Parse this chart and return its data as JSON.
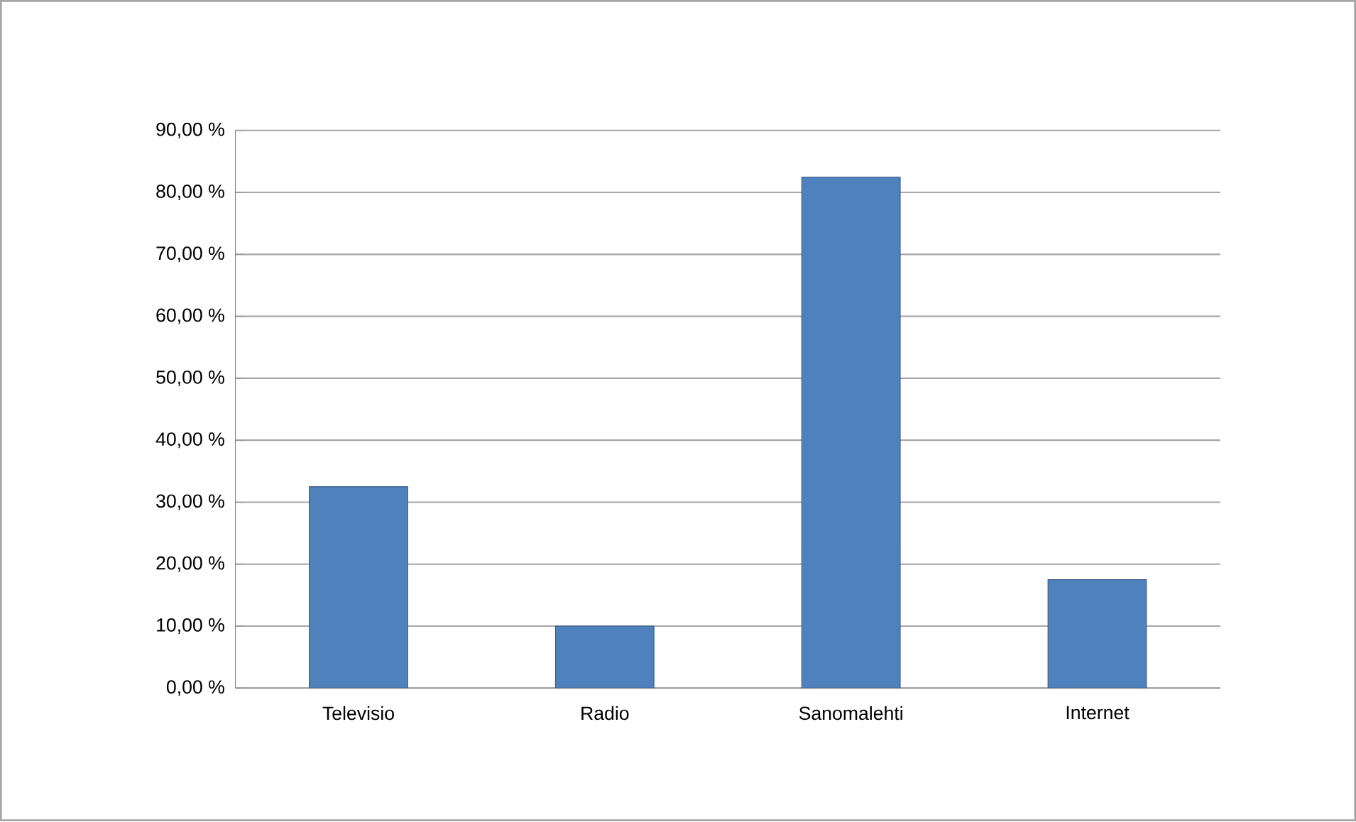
{
  "chart_data": {
    "type": "bar",
    "categories": [
      "Televisio",
      "Radio",
      "Sanomalehti",
      "Internet"
    ],
    "values": [
      32.5,
      10,
      82.5,
      17.5
    ],
    "color": "#4f81bd",
    "ylim": [
      0,
      90
    ],
    "yticks": [
      {
        "value": 0,
        "label": "0,00 %"
      },
      {
        "value": 10,
        "label": "10,00 %"
      },
      {
        "value": 20,
        "label": "20,00 %"
      },
      {
        "value": 30,
        "label": "30,00 %"
      },
      {
        "value": 40,
        "label": "40,00 %"
      },
      {
        "value": 50,
        "label": "50,00 %"
      },
      {
        "value": 60,
        "label": "60,00 %"
      },
      {
        "value": 70,
        "label": "70,00 %"
      },
      {
        "value": 80,
        "label": "80,00 %"
      },
      {
        "value": 90,
        "label": "90,00 %"
      }
    ],
    "grid": "y"
  }
}
